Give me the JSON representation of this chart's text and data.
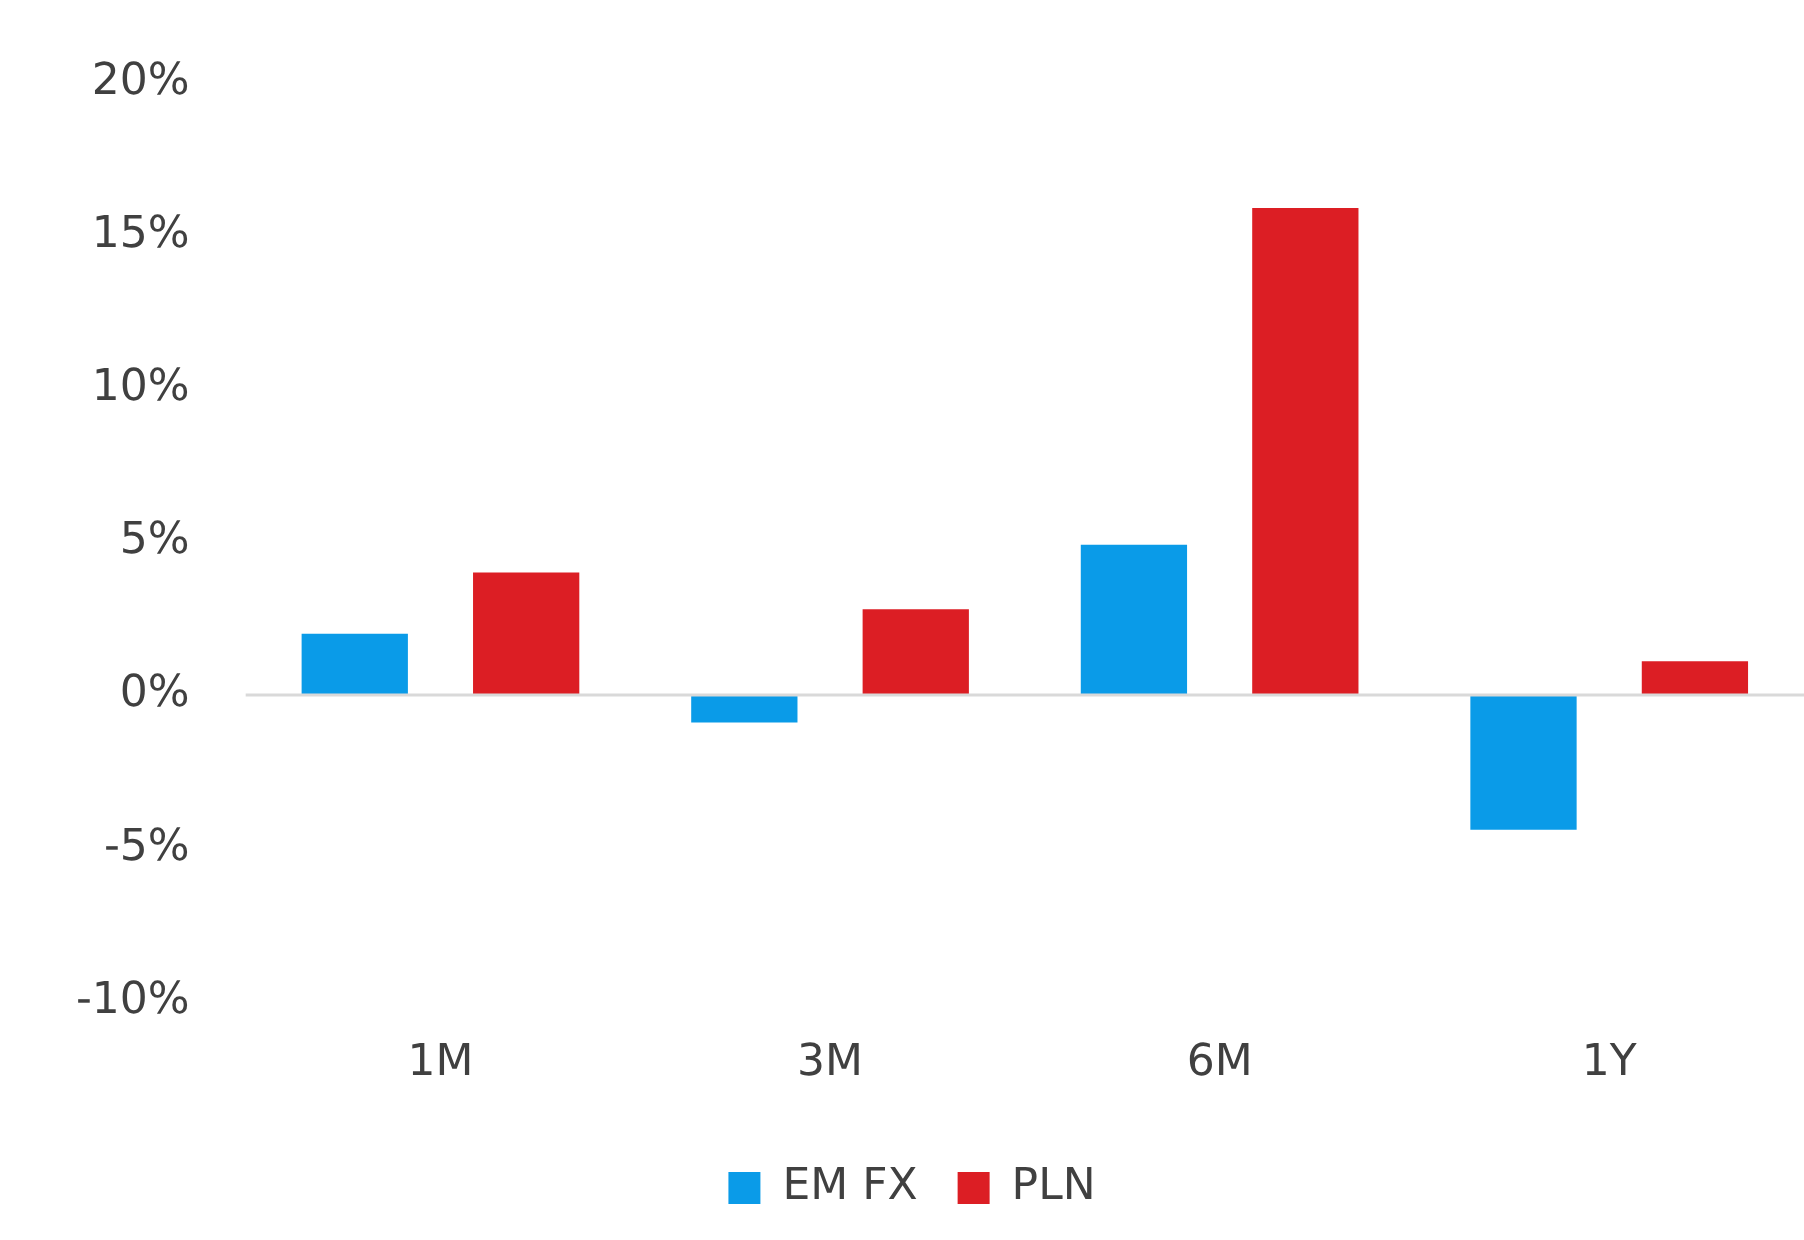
{
  "chart_data": {
    "type": "bar",
    "categories": [
      "1M",
      "3M",
      "6M",
      "1Y"
    ],
    "series": [
      {
        "name": "EM FX",
        "color": "#0a9be8",
        "values": [
          2.0,
          -0.9,
          4.9,
          -4.4
        ]
      },
      {
        "name": "PLN",
        "color": "#dc1e24",
        "values": [
          4.0,
          2.8,
          15.9,
          1.1
        ]
      }
    ],
    "ylim": [
      -10,
      20
    ],
    "yticks": [
      {
        "value": -10,
        "label": "-10%"
      },
      {
        "value": -5,
        "label": "-5%"
      },
      {
        "value": 0,
        "label": "0%"
      },
      {
        "value": 5,
        "label": "5%"
      },
      {
        "value": 10,
        "label": "10%"
      },
      {
        "value": 15,
        "label": "15%"
      },
      {
        "value": 20,
        "label": "20%"
      }
    ],
    "ref_lines": [
      {
        "axis": "y",
        "value": 0,
        "color": "#d9d9d9"
      }
    ],
    "grid": false,
    "legend": "bottom"
  }
}
